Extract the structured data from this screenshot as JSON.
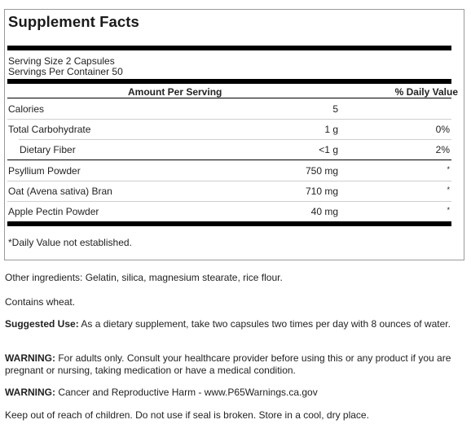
{
  "label": {
    "title": "Supplement Facts",
    "serving_size": "Serving Size 2 Capsules",
    "servings_per_container": "Servings Per Container 50",
    "header_amount": "Amount Per Serving",
    "header_dv": "% Daily Value",
    "rows": [
      {
        "name": "Calories",
        "amount": "5",
        "dv": ""
      },
      {
        "name": "Total Carbohydrate",
        "amount": "1 g",
        "dv": "0%"
      },
      {
        "name": "Dietary Fiber",
        "amount": "<1 g",
        "dv": "2%"
      },
      {
        "name": "Psyllium Powder",
        "amount": "750 mg",
        "dv": "*"
      },
      {
        "name": "Oat (Avena sativa) Bran",
        "amount": "710 mg",
        "dv": "*"
      },
      {
        "name": "Apple Pectin Powder",
        "amount": "40 mg",
        "dv": "*"
      }
    ],
    "footnote": "*Daily Value not established."
  },
  "info": {
    "other_ingredients": "Other ingredients: Gelatin, silica, magnesium stearate, rice flour.",
    "contains": "Contains wheat.",
    "suggested_use_label": "Suggested Use:",
    "suggested_use_text": " As a dietary supplement, take two capsules two times per day with 8 ounces of water.",
    "warning1_label": "WARNING:",
    "warning1_text": " For adults only. Consult your healthcare provider before using this or any product if you are pregnant or nursing, taking medication or have a medical condition.",
    "warning2_label": "WARNING:",
    "warning2_text": " Cancer and Reproductive Harm - www.P65Warnings.ca.gov",
    "storage": "Keep out of reach of children. Do not use if seal is broken. Store in a cool, dry place."
  }
}
